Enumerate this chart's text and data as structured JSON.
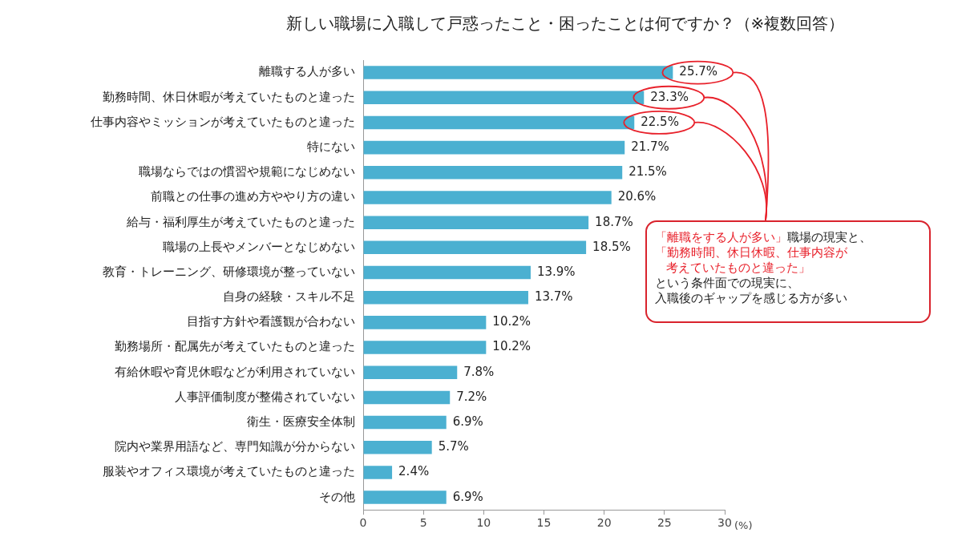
{
  "chart_data": {
    "type": "bar",
    "orientation": "horizontal",
    "title": "新しい職場に入職して戸惑ったこと・困ったことは何ですか？（※複数回答）",
    "categories": [
      "離職する人が多い",
      "勤務時間、休日休暇が考えていたものと違った",
      "仕事内容やミッションが考えていたものと違った",
      "特にない",
      "職場ならではの慣習や規範になじめない",
      "前職との仕事の進め方ややり方の違い",
      "給与・福利厚生が考えていたものと違った",
      "職場の上長やメンバーとなじめない",
      "教育・トレーニング、研修環境が整っていない",
      "自身の経験・スキル不足",
      "目指す方針や看護観が合わない",
      "勤務場所・配属先が考えていたものと違った",
      "有給休暇や育児休暇などが利用されていない",
      "人事評価制度が整備されていない",
      "衛生・医療安全体制",
      "院内や業界用語など、専門知識が分からない",
      "服装やオフィス環境が考えていたものと違った",
      "その他"
    ],
    "values": [
      25.7,
      23.3,
      22.5,
      21.7,
      21.5,
      20.6,
      18.7,
      18.5,
      13.9,
      13.7,
      10.2,
      10.2,
      7.8,
      7.2,
      6.9,
      5.7,
      2.4,
      6.9
    ],
    "value_labels": [
      "25.7%",
      "23.3%",
      "22.5%",
      "21.7%",
      "21.5%",
      "20.6%",
      "18.7%",
      "18.5%",
      "13.9%",
      "13.7%",
      "10.2%",
      "10.2%",
      "7.8%",
      "7.2%",
      "6.9%",
      "5.7%",
      "2.4%",
      "6.9%"
    ],
    "color": "#4bb0d1",
    "xlim": [
      0,
      30
    ],
    "xticks": [
      0,
      5,
      10,
      15,
      20,
      25,
      30
    ],
    "xlabel": "(%)",
    "grid": false,
    "legend": false,
    "annotations": [
      "「離職をする人が多い」",
      "職場の現実と、",
      "「勤務時間、休日休暇、仕事内容が",
      "考えていたものと違った」",
      "という条件面での現実に、",
      "入職後のギャップを感じる方が多い"
    ]
  }
}
